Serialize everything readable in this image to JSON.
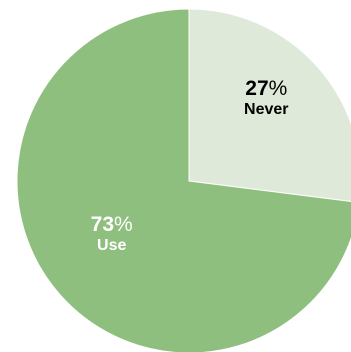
{
  "chart_data": {
    "type": "pie",
    "start_angle_deg": 0,
    "direction": "clockwise",
    "slices": [
      {
        "label": "Never",
        "value": 27,
        "value_text": "27",
        "percent_sign": "%",
        "color": "#dfe9d9",
        "label_color": "#000000"
      },
      {
        "label": "Use",
        "value": 73,
        "value_text": "73",
        "percent_sign": "%",
        "color": "#8fbf7e",
        "label_color": "#ffffff"
      }
    ],
    "slice_border_color": "#ffffff",
    "legend": "none"
  }
}
